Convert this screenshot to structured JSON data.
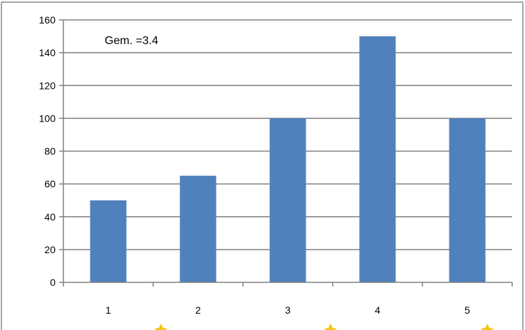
{
  "chart_data": {
    "type": "bar",
    "categories": [
      "1",
      "2",
      "3",
      "4",
      "5"
    ],
    "values": [
      50,
      65,
      100,
      150,
      100
    ],
    "title": "",
    "xlabel": "",
    "ylabel": "",
    "ylim": [
      0,
      160
    ],
    "yticks": [
      0,
      20,
      40,
      60,
      80,
      100,
      120,
      140,
      160
    ],
    "ytick_labels": [
      "0",
      "20",
      "40",
      "60",
      "80",
      "100",
      "120",
      "140",
      "160"
    ],
    "grid": true,
    "legend": "none",
    "annotation": "Gem. =3.4",
    "colors": {
      "bar": "#4F81BD",
      "grid": "#808080",
      "axis": "#808080",
      "star": "#F5C518"
    }
  }
}
